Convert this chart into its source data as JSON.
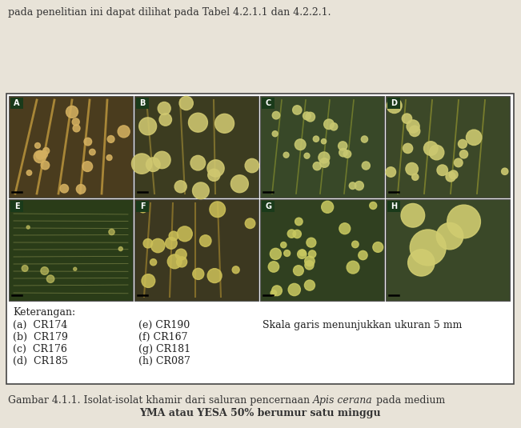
{
  "top_text": "pada penelitian ini dapat dilihat pada Tabel 4.2.1.1 dan 4.2.2.1.",
  "panel_labels": [
    "A",
    "B",
    "C",
    "D",
    "E",
    "F",
    "G",
    "H"
  ],
  "bg_color": "#e8e3d8",
  "box_facecolor": "#ffffff",
  "outer_box_edgecolor": "#444444",
  "panel_border_color": "#555555",
  "label_bg": "#1a3a1a",
  "label_text_color": "#ffffff",
  "top_text_color": "#333333",
  "legend_text_color": "#222222",
  "caption_text_color": "#333333",
  "legend_title": "Keterangan:",
  "legend_col1": [
    "(a)  CR174",
    "(b)  CR179",
    "(c)  CR176",
    "(d)  CR185"
  ],
  "legend_col2": [
    "(e) CR190",
    "(f) CR167",
    "(g) CR181",
    "(h) CR087"
  ],
  "legend_col3": "Skala garis menunjukkan ukuran 5 mm",
  "caption_line1": "Gambar 4.1.1. Isolat-isolat khamir dari saluran pencernaan ",
  "caption_italic": "Apis cerana",
  "caption_line1_end": " pada medium",
  "caption_line2": "YMA atau YESA 50% berumur satu minggu",
  "panel_bg_colors": [
    "#4a3c1e",
    "#3c3c20",
    "#384828",
    "#3c4828",
    "#2a3c18",
    "#3c3820",
    "#304020",
    "#3a4828"
  ],
  "colony_colors": [
    "#d4b060",
    "#d0c870",
    "#c8c870",
    "#ccc870",
    "#c4c060",
    "#ccc058",
    "#c8c860",
    "#d0cc70"
  ],
  "streak_colors": [
    "#c09840",
    "#a09830",
    "#909830",
    "#a0a030",
    "#90a040",
    "#a09030",
    "#909030",
    "#a0a038"
  ]
}
